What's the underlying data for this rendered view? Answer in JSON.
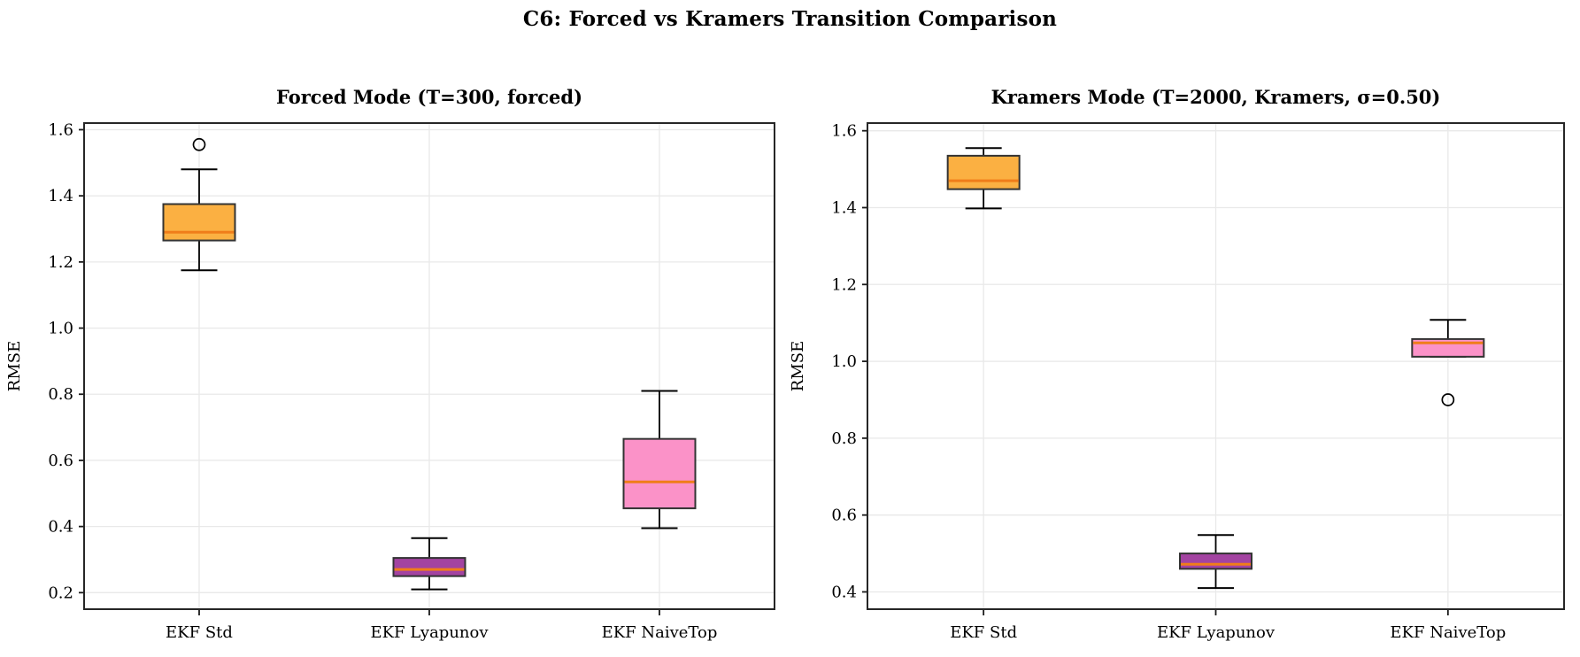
{
  "figure": {
    "title": "C6: Forced vs Kramers Transition Comparison",
    "background": "#ffffff"
  },
  "colors": {
    "grid": "#e9e9e9",
    "spine": "#262626",
    "tick": "#1a1a1a",
    "whisker": "#000000",
    "box_edge": "#333333",
    "median": "#f07d1a",
    "text": "#000000"
  },
  "chart_data": [
    {
      "type": "box",
      "title": "Forced Mode (T=300, forced)",
      "ylabel": "RMSE",
      "ylim": [
        0.15,
        1.62
      ],
      "yticks": [
        0.2,
        0.4,
        0.6,
        0.8,
        1.0,
        1.2,
        1.4,
        1.6
      ],
      "grid": true,
      "categories": [
        "EKF Std",
        "EKF Lyapunov",
        "EKF NaiveTop"
      ],
      "series": [
        {
          "name": "EKF Std",
          "fill": "#fbb042",
          "whisker_low": 1.175,
          "q1": 1.265,
          "median": 1.29,
          "q3": 1.375,
          "whisker_high": 1.48,
          "outliers": [
            1.555
          ]
        },
        {
          "name": "EKF Lyapunov",
          "fill": "#a343a1",
          "whisker_low": 0.21,
          "q1": 0.25,
          "median": 0.27,
          "q3": 0.305,
          "whisker_high": 0.365,
          "outliers": []
        },
        {
          "name": "EKF NaiveTop",
          "fill": "#fb92c8",
          "whisker_low": 0.395,
          "q1": 0.455,
          "median": 0.535,
          "q3": 0.665,
          "whisker_high": 0.81,
          "outliers": []
        }
      ]
    },
    {
      "type": "box",
      "title": "Kramers Mode (T=2000, Kramers, σ=0.50)",
      "ylabel": "RMSE",
      "ylim": [
        0.355,
        1.62
      ],
      "yticks": [
        0.4,
        0.6,
        0.8,
        1.0,
        1.2,
        1.4,
        1.6
      ],
      "grid": true,
      "categories": [
        "EKF Std",
        "EKF Lyapunov",
        "EKF NaiveTop"
      ],
      "series": [
        {
          "name": "EKF Std",
          "fill": "#fbb042",
          "whisker_low": 1.398,
          "q1": 1.448,
          "median": 1.47,
          "q3": 1.535,
          "whisker_high": 1.555,
          "outliers": []
        },
        {
          "name": "EKF Lyapunov",
          "fill": "#a343a1",
          "whisker_low": 0.41,
          "q1": 0.46,
          "median": 0.472,
          "q3": 0.5,
          "whisker_high": 0.548,
          "outliers": []
        },
        {
          "name": "EKF NaiveTop",
          "fill": "#fb92c8",
          "whisker_low": 1.012,
          "q1": 1.012,
          "median": 1.048,
          "q3": 1.058,
          "whisker_high": 1.108,
          "outliers": [
            0.9
          ]
        }
      ]
    }
  ]
}
